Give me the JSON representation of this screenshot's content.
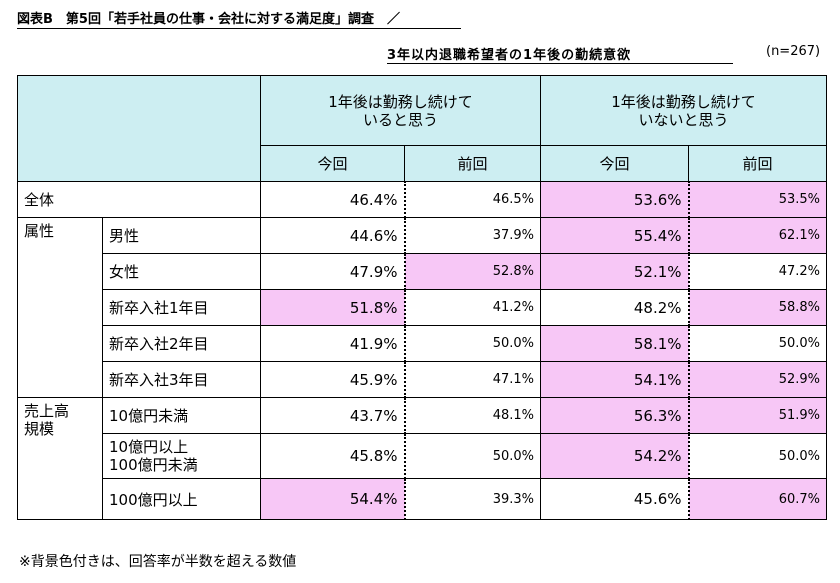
{
  "title": "図表B　第5回「若手社員の仕事・会社に対する満足度」調査　／",
  "subtitle": "3年以内退職希望者の1年後の勤続意欲",
  "n_label": "(n=267)",
  "header": {
    "group1": "1年後は勤務し続けて\nいると思う",
    "group2": "1年後は勤務し続けて\nいないと思う",
    "current": "今回",
    "previous": "前回"
  },
  "highlight_color": "#f7c7f6",
  "header_color": "#cdeef2",
  "rows": [
    {
      "category": "全体",
      "label": "",
      "values": [
        "46.4%",
        "46.5%",
        "53.6%",
        "53.5%"
      ],
      "pink": [
        false,
        false,
        true,
        true
      ]
    },
    {
      "category": "属性",
      "label": "男性",
      "values": [
        "44.6%",
        "37.9%",
        "55.4%",
        "62.1%"
      ],
      "pink": [
        false,
        false,
        true,
        true
      ]
    },
    {
      "category": "",
      "label": "女性",
      "values": [
        "47.9%",
        "52.8%",
        "52.1%",
        "47.2%"
      ],
      "pink": [
        false,
        true,
        true,
        false
      ]
    },
    {
      "category": "",
      "label": "新卒入社1年目",
      "values": [
        "51.8%",
        "41.2%",
        "48.2%",
        "58.8%"
      ],
      "pink": [
        true,
        false,
        false,
        true
      ]
    },
    {
      "category": "",
      "label": "新卒入社2年目",
      "values": [
        "41.9%",
        "50.0%",
        "58.1%",
        "50.0%"
      ],
      "pink": [
        false,
        false,
        true,
        false
      ]
    },
    {
      "category": "",
      "label": "新卒入社3年目",
      "values": [
        "45.9%",
        "47.1%",
        "54.1%",
        "52.9%"
      ],
      "pink": [
        false,
        false,
        true,
        true
      ]
    },
    {
      "category": "売上高\n規模",
      "label": "10億円未満",
      "values": [
        "43.7%",
        "48.1%",
        "56.3%",
        "51.9%"
      ],
      "pink": [
        false,
        false,
        true,
        true
      ]
    },
    {
      "category": "",
      "label": "10億円以上\n100億円未満",
      "values": [
        "45.8%",
        "50.0%",
        "54.2%",
        "50.0%"
      ],
      "pink": [
        false,
        false,
        true,
        false
      ]
    },
    {
      "category": "",
      "label": "100億円以上",
      "values": [
        "54.4%",
        "39.3%",
        "45.6%",
        "60.7%"
      ],
      "pink": [
        true,
        false,
        false,
        true
      ]
    }
  ],
  "footnote": "※背景色付きは、回答率が半数を超える数値"
}
